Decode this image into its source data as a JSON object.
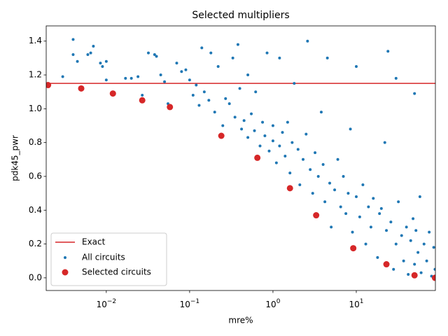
{
  "chart_data": {
    "type": "scatter",
    "title": "Selected multipliers",
    "x_label": "mre%",
    "y_label": "pdk45_pwr",
    "xscale": "log",
    "xlim": [
      0.0019,
      89
    ],
    "ylim": [
      -0.075,
      1.49
    ],
    "xticks": [
      {
        "value": 0.01,
        "base": "10",
        "exponent": "−2"
      },
      {
        "value": 0.1,
        "base": "10",
        "exponent": "−1"
      },
      {
        "value": 1,
        "base": "10",
        "exponent": "0"
      },
      {
        "value": 10,
        "base": "10",
        "exponent": "1"
      }
    ],
    "yticks": [
      {
        "value": 0,
        "label": "0.0"
      },
      0.2,
      0.4,
      0.6,
      0.8,
      {
        "value": 1,
        "label": "1.0"
      },
      1.2,
      1.4
    ],
    "legend": "lower left",
    "grid": false,
    "exact": {
      "name": "Exact",
      "color": "#d62728",
      "y": 1.15
    },
    "series": [
      {
        "name": "All circuits",
        "color": "#1f77b4",
        "marker_size": 2,
        "x": [
          0.003,
          0.004,
          0.004,
          0.0045,
          0.006,
          0.0065,
          0.007,
          0.0085,
          0.009,
          0.01,
          0.01,
          0.017,
          0.02,
          0.024,
          0.027,
          0.032,
          0.038,
          0.04,
          0.045,
          0.05,
          0.055,
          0.07,
          0.08,
          0.09,
          0.1,
          0.11,
          0.12,
          0.13,
          0.14,
          0.15,
          0.17,
          0.18,
          0.2,
          0.22,
          0.25,
          0.27,
          0.3,
          0.33,
          0.35,
          0.38,
          0.4,
          0.42,
          0.45,
          0.5,
          0.5,
          0.55,
          0.6,
          0.62,
          0.7,
          0.75,
          0.8,
          0.85,
          0.9,
          1.0,
          1.0,
          1.1,
          1.2,
          1.2,
          1.3,
          1.4,
          1.5,
          1.6,
          1.7,
          1.8,
          2.0,
          2.1,
          2.3,
          2.5,
          2.6,
          2.8,
          3.0,
          3.2,
          3.5,
          3.8,
          4.0,
          4.2,
          4.5,
          4.8,
          5.0,
          5.5,
          6.0,
          6.5,
          7.0,
          7.5,
          8.0,
          8.5,
          9.0,
          10,
          10,
          11,
          12,
          13,
          14,
          15,
          16,
          18,
          19,
          20,
          22,
          23,
          24,
          26,
          28,
          30,
          32,
          35,
          37,
          40,
          42,
          45,
          48,
          50,
          52,
          55,
          58,
          60,
          65,
          70,
          75,
          80,
          85,
          88,
          30,
          50
        ],
        "values": [
          1.19,
          1.41,
          1.32,
          1.28,
          1.32,
          1.33,
          1.37,
          1.27,
          1.25,
          1.28,
          1.17,
          1.18,
          1.18,
          1.19,
          1.08,
          1.33,
          1.32,
          1.31,
          1.2,
          1.16,
          1.03,
          1.27,
          1.22,
          1.23,
          1.17,
          1.08,
          1.14,
          1.02,
          1.36,
          1.1,
          1.05,
          1.33,
          0.98,
          1.25,
          0.9,
          1.06,
          1.03,
          1.3,
          0.95,
          1.38,
          1.12,
          0.88,
          0.93,
          0.83,
          1.2,
          0.97,
          0.87,
          1.1,
          0.78,
          0.92,
          0.84,
          1.33,
          0.75,
          0.81,
          0.9,
          0.68,
          0.78,
          1.3,
          0.86,
          0.72,
          0.92,
          0.62,
          0.8,
          1.15,
          0.76,
          0.55,
          0.7,
          0.85,
          1.4,
          0.64,
          0.5,
          0.74,
          0.6,
          0.98,
          0.67,
          0.45,
          1.3,
          0.56,
          0.3,
          0.52,
          0.7,
          0.42,
          0.6,
          0.38,
          0.5,
          0.88,
          0.27,
          0.48,
          1.25,
          0.36,
          0.55,
          0.2,
          0.42,
          0.3,
          0.47,
          0.12,
          0.38,
          0.41,
          0.8,
          0.28,
          1.34,
          0.33,
          0.05,
          0.2,
          0.45,
          0.25,
          0.1,
          0.3,
          0.02,
          0.22,
          0.35,
          0.08,
          0.28,
          0.15,
          0.48,
          0.03,
          0.2,
          0.1,
          0.27,
          0.01,
          0.18,
          0.05,
          1.18,
          1.09
        ]
      },
      {
        "name": "Selected circuits",
        "color": "#d62728",
        "marker_size": 4.5,
        "x": [
          0.002,
          0.005,
          0.012,
          0.027,
          0.058,
          0.24,
          0.65,
          1.6,
          3.3,
          9.2,
          23,
          50,
          88
        ],
        "values": [
          1.14,
          1.12,
          1.09,
          1.05,
          1.01,
          0.84,
          0.71,
          0.53,
          0.37,
          0.175,
          0.08,
          0.015,
          0.0
        ]
      }
    ]
  }
}
